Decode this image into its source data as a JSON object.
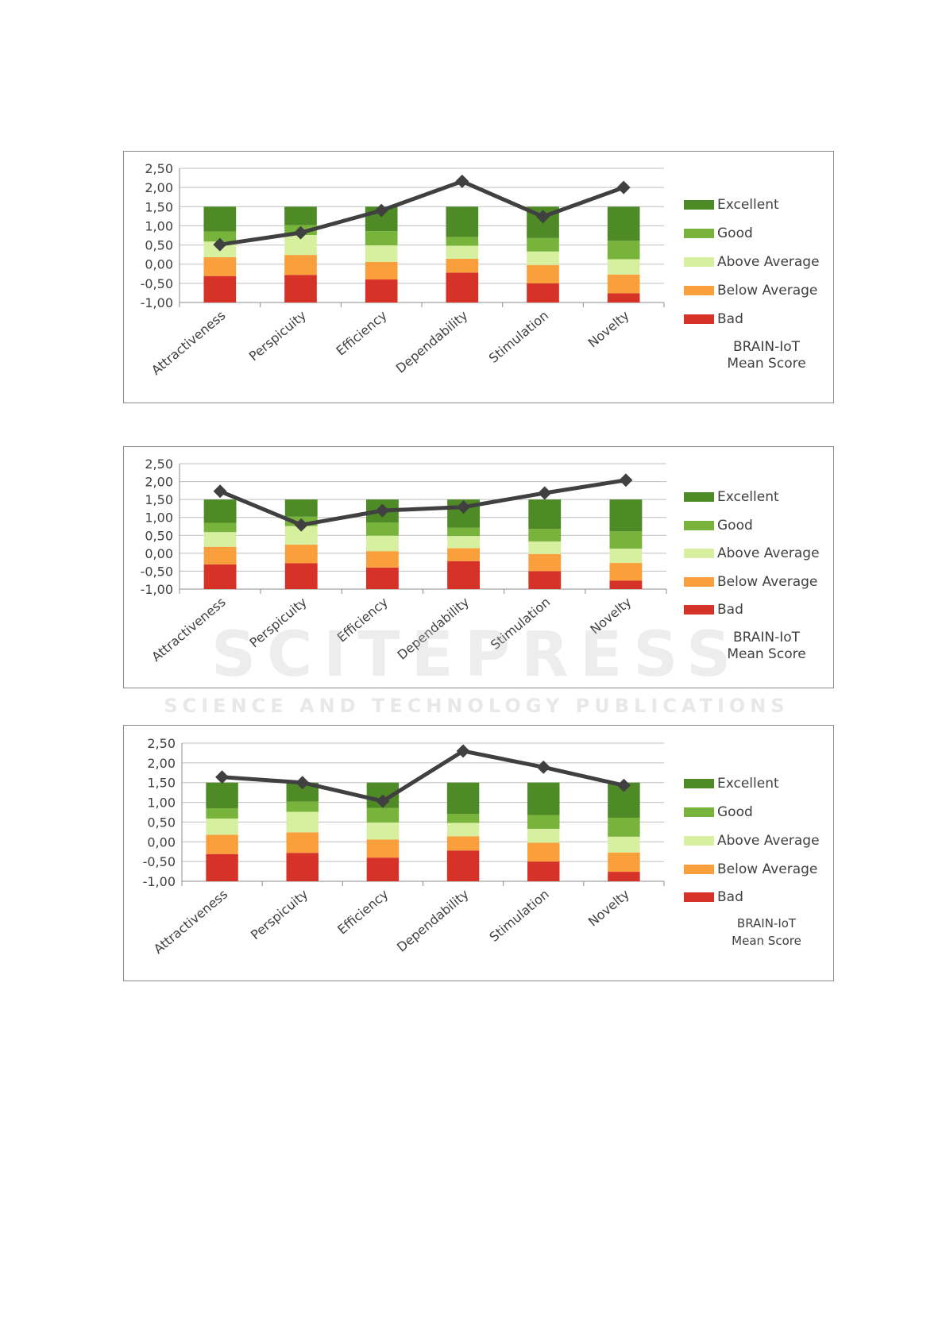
{
  "legend": {
    "excellent": "Excellent",
    "good": "Good",
    "above_average": "Above Average",
    "below_average": "Below Average",
    "bad": "Bad",
    "mean_line1": "BRAIN-IoT",
    "mean_line2": "Mean Score"
  },
  "colors": {
    "excellent": "#4e8a26",
    "good": "#78b43c",
    "above_average": "#d7f0a0",
    "below_average": "#f9a03c",
    "bad": "#d73227",
    "mean_line": "#404040",
    "grid": "#bfbfbf",
    "axis_text": "#404040"
  },
  "watermark": {
    "big": "SCITEPRESS",
    "small": "SCIENCE AND TECHNOLOGY PUBLICATIONS"
  },
  "chart_data": [
    {
      "type": "bar",
      "stacked": true,
      "title": "",
      "categories": [
        "Attractiveness",
        "Perspicuity",
        "Efficiency",
        "Dependability",
        "Stimulation",
        "Novelty"
      ],
      "ylim": [
        -1.0,
        2.5
      ],
      "yticks": [
        "2,50",
        "2,00",
        "1,50",
        "1,00",
        "0,50",
        "0,00",
        "-0,50",
        "-1,00"
      ],
      "ytick_values": [
        2.5,
        2.0,
        1.5,
        1.0,
        0.5,
        0.0,
        -0.5,
        -1.0
      ],
      "series": [
        {
          "name": "Bad",
          "values": [
            0.69,
            0.72,
            0.6,
            0.78,
            0.5,
            0.24
          ]
        },
        {
          "name": "Below Average",
          "values": [
            0.49,
            0.52,
            0.46,
            0.36,
            0.48,
            0.49
          ]
        },
        {
          "name": "Above Average",
          "values": [
            0.41,
            0.52,
            0.43,
            0.34,
            0.35,
            0.4
          ]
        },
        {
          "name": "Good",
          "values": [
            0.26,
            0.26,
            0.37,
            0.23,
            0.35,
            0.48
          ]
        },
        {
          "name": "Excellent",
          "values": [
            0.65,
            0.48,
            0.64,
            0.79,
            0.82,
            0.89
          ]
        }
      ],
      "mean_score": {
        "name": "BRAIN-IoT Mean Score",
        "values": [
          0.51,
          0.82,
          1.4,
          2.16,
          1.24,
          2.0
        ]
      }
    },
    {
      "type": "bar",
      "stacked": true,
      "title": "",
      "categories": [
        "Attractiveness",
        "Perspicuity",
        "Efficiency",
        "Dependability",
        "Stimulation",
        "Novelty"
      ],
      "ylim": [
        -1.0,
        2.5
      ],
      "yticks": [
        "2,50",
        "2,00",
        "1,50",
        "1,00",
        "0,50",
        "0,00",
        "-0,50",
        "-1,00"
      ],
      "ytick_values": [
        2.5,
        2.0,
        1.5,
        1.0,
        0.5,
        0.0,
        -0.5,
        -1.0
      ],
      "series": [
        {
          "name": "Bad",
          "values": [
            0.69,
            0.72,
            0.6,
            0.78,
            0.5,
            0.24
          ]
        },
        {
          "name": "Below Average",
          "values": [
            0.49,
            0.52,
            0.46,
            0.36,
            0.48,
            0.49
          ]
        },
        {
          "name": "Above Average",
          "values": [
            0.41,
            0.52,
            0.43,
            0.34,
            0.35,
            0.4
          ]
        },
        {
          "name": "Good",
          "values": [
            0.26,
            0.26,
            0.37,
            0.23,
            0.35,
            0.48
          ]
        },
        {
          "name": "Excellent",
          "values": [
            0.65,
            0.48,
            0.64,
            0.79,
            0.82,
            0.89
          ]
        }
      ],
      "mean_score": {
        "name": "BRAIN-IoT Mean Score",
        "values": [
          1.73,
          0.79,
          1.19,
          1.29,
          1.68,
          2.04
        ]
      }
    },
    {
      "type": "bar",
      "stacked": true,
      "title": "",
      "categories": [
        "Attractiveness",
        "Perspicuity",
        "Efficiency",
        "Dependability",
        "Stimulation",
        "Novelty"
      ],
      "ylim": [
        -1.0,
        2.5
      ],
      "yticks": [
        "2,50",
        "2,00",
        "1,50",
        "1,00",
        "0,50",
        "0,00",
        "-0,50",
        "-1,00"
      ],
      "ytick_values": [
        2.5,
        2.0,
        1.5,
        1.0,
        0.5,
        0.0,
        -0.5,
        -1.0
      ],
      "series": [
        {
          "name": "Bad",
          "values": [
            0.69,
            0.72,
            0.6,
            0.78,
            0.5,
            0.24
          ]
        },
        {
          "name": "Below Average",
          "values": [
            0.49,
            0.52,
            0.46,
            0.36,
            0.48,
            0.49
          ]
        },
        {
          "name": "Above Average",
          "values": [
            0.41,
            0.52,
            0.43,
            0.34,
            0.35,
            0.4
          ]
        },
        {
          "name": "Good",
          "values": [
            0.26,
            0.26,
            0.37,
            0.23,
            0.35,
            0.48
          ]
        },
        {
          "name": "Excellent",
          "values": [
            0.65,
            0.48,
            0.64,
            0.79,
            0.82,
            0.89
          ]
        }
      ],
      "mean_score": {
        "name": "BRAIN-IoT Mean Score",
        "values": [
          1.64,
          1.5,
          1.03,
          2.3,
          1.89,
          1.43
        ]
      }
    }
  ]
}
